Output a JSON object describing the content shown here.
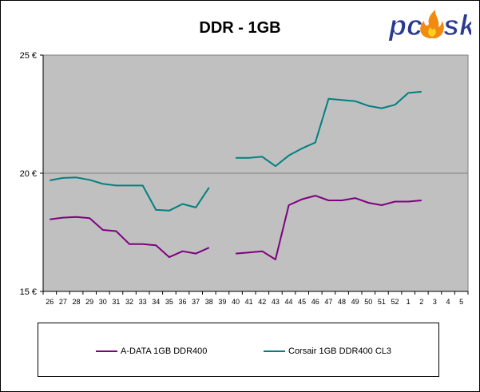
{
  "chart_data": {
    "type": "line",
    "title": "DDR - 1GB",
    "xlabel": "",
    "ylabel": "",
    "categories": [
      "26",
      "27",
      "28",
      "29",
      "30",
      "31",
      "32",
      "33",
      "34",
      "35",
      "36",
      "37",
      "38",
      "39",
      "40",
      "41",
      "42",
      "43",
      "44",
      "45",
      "46",
      "47",
      "48",
      "49",
      "50",
      "51",
      "52",
      "1",
      "2",
      "3",
      "4",
      "5"
    ],
    "yticks": [
      "15 €",
      "20 €",
      "25 €"
    ],
    "ytick_values": [
      15,
      20,
      25
    ],
    "ylim": [
      15,
      25
    ],
    "grid": "major horizontal",
    "legend_position": "bottom",
    "plot_background": "#c0c0c0",
    "series": [
      {
        "name": "A-DATA 1GB DDR400",
        "color": "#800080",
        "values": [
          18.05,
          18.12,
          18.15,
          18.1,
          17.6,
          17.55,
          17.0,
          17.0,
          16.95,
          16.45,
          16.7,
          16.6,
          16.85,
          null,
          16.6,
          16.65,
          16.7,
          16.35,
          18.65,
          18.9,
          19.05,
          18.85,
          18.85,
          18.95,
          18.75,
          18.65,
          18.8,
          18.8,
          18.85,
          null,
          null,
          null
        ]
      },
      {
        "name": "Corsair 1GB DDR400 CL3",
        "color": "#008080",
        "values": [
          19.7,
          19.8,
          19.82,
          19.72,
          19.55,
          19.48,
          19.48,
          19.48,
          18.45,
          18.42,
          18.7,
          18.55,
          19.4,
          null,
          20.65,
          20.65,
          20.7,
          20.3,
          20.75,
          21.05,
          21.3,
          23.15,
          23.1,
          23.05,
          22.85,
          22.75,
          22.9,
          23.4,
          23.45,
          null,
          null,
          null
        ]
      }
    ]
  },
  "logo": {
    "text": "pcosk"
  }
}
